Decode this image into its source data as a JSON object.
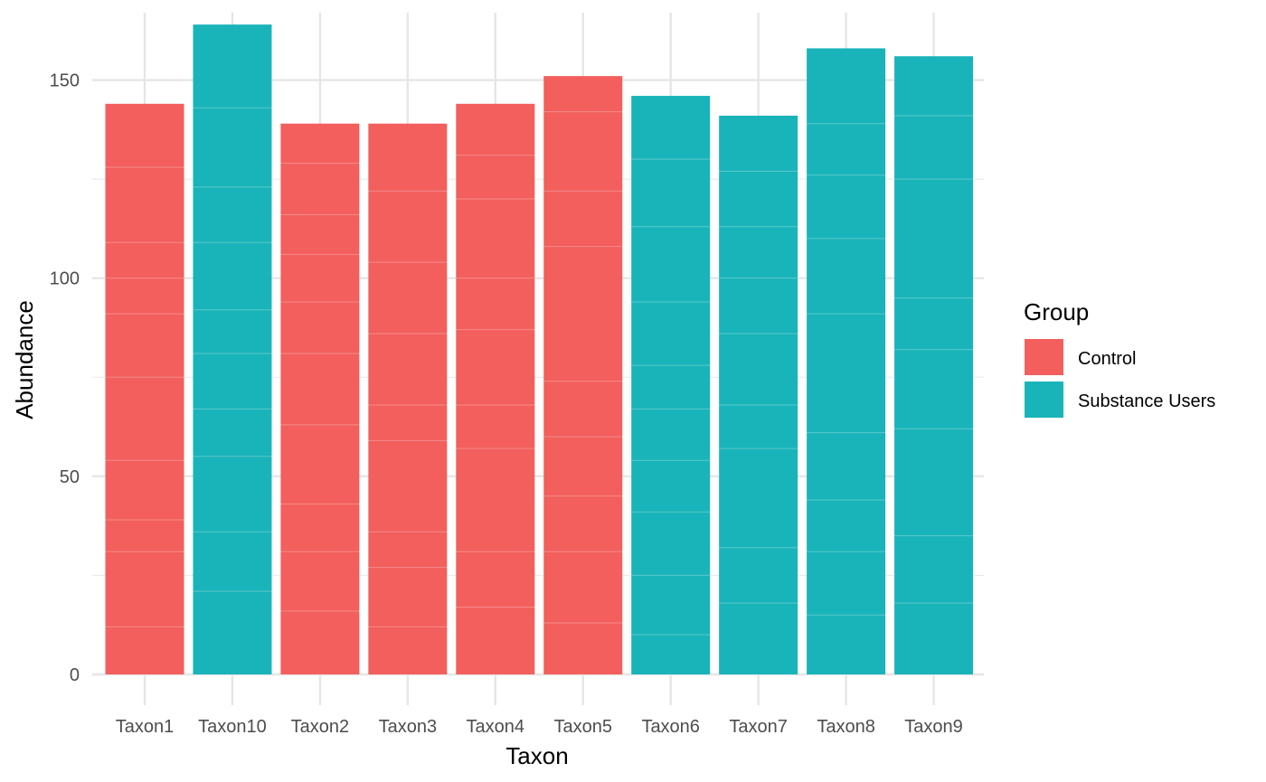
{
  "chart_data": {
    "type": "bar",
    "title": "",
    "xlabel": "Taxon",
    "ylabel": "Abundance",
    "ylim": [
      0,
      167
    ],
    "y_ticks": [
      0,
      50,
      100,
      150
    ],
    "grid": true,
    "legend": {
      "title": "Group",
      "position": "right",
      "entries": [
        {
          "name": "Control",
          "color": "#F25F5C"
        },
        {
          "name": "Substance Users",
          "color": "#19B4B9"
        }
      ]
    },
    "categories": [
      "Taxon1",
      "Taxon10",
      "Taxon2",
      "Taxon3",
      "Taxon4",
      "Taxon5",
      "Taxon6",
      "Taxon7",
      "Taxon8",
      "Taxon9"
    ],
    "values": [
      144,
      164,
      139,
      139,
      144,
      151,
      146,
      141,
      158,
      156
    ],
    "groups": [
      "Control",
      "Substance Users",
      "Control",
      "Control",
      "Control",
      "Control",
      "Substance Users",
      "Substance Users",
      "Substance Users",
      "Substance Users"
    ],
    "segment_boundaries": [
      [
        12,
        31,
        39,
        54,
        75,
        91,
        100,
        109,
        128
      ],
      [
        21,
        36,
        55,
        67,
        81,
        92,
        109,
        123,
        143
      ],
      [
        16,
        31,
        43,
        63,
        81,
        94,
        106,
        116,
        129
      ],
      [
        12,
        27,
        36,
        59,
        68,
        86,
        104,
        122
      ],
      [
        17,
        31,
        57,
        68,
        87,
        100,
        120,
        131
      ],
      [
        13,
        31,
        45,
        60,
        74,
        108,
        122,
        142
      ],
      [
        10,
        25,
        41,
        54,
        67,
        78,
        94,
        113,
        130
      ],
      [
        18,
        32,
        57,
        68,
        86,
        100,
        113,
        127
      ],
      [
        15,
        31,
        44,
        61,
        91,
        110,
        126,
        139
      ],
      [
        18,
        35,
        62,
        82,
        95,
        125,
        141
      ]
    ]
  }
}
